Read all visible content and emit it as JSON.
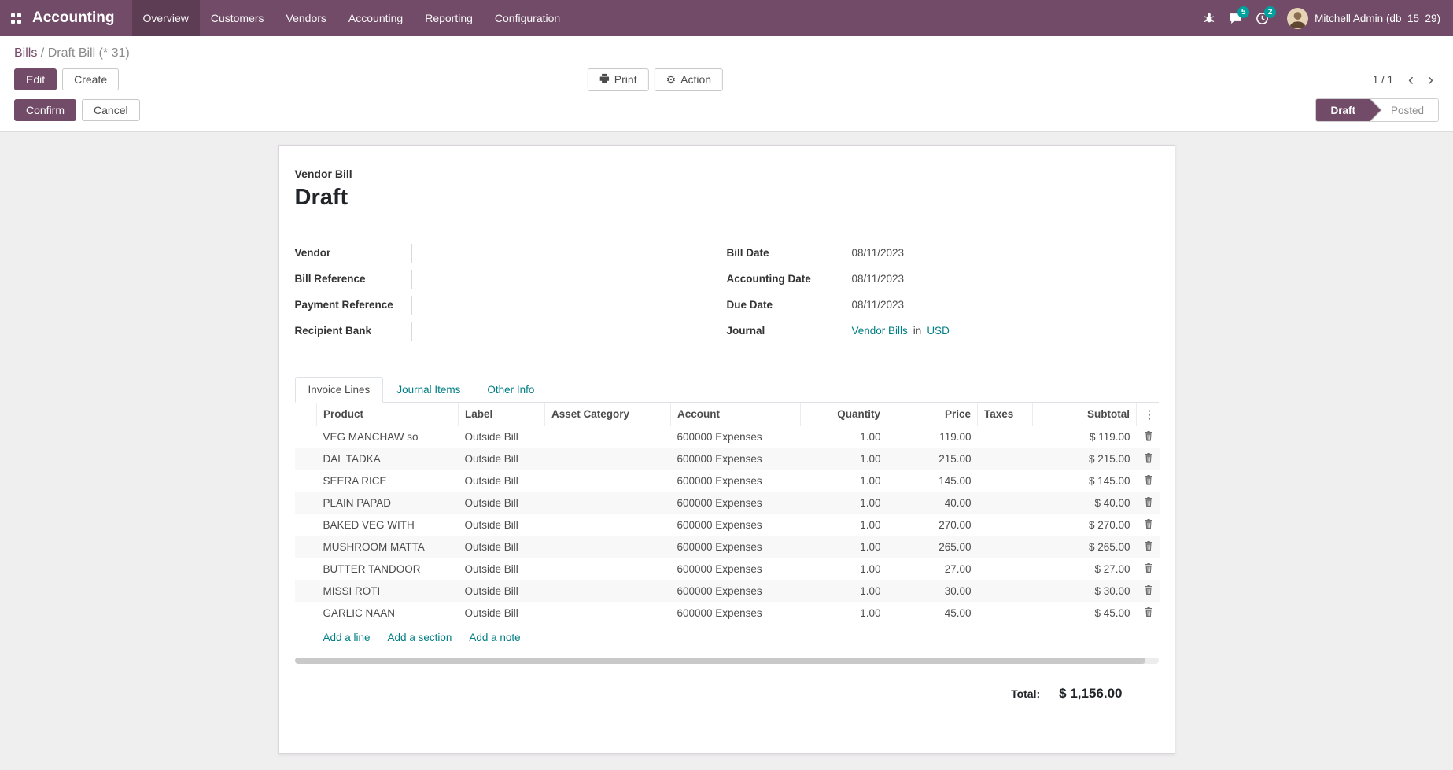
{
  "colors": {
    "brand": "#714B67",
    "link": "#017e84",
    "badge": "#00a09d",
    "page_bg": "#f0eff0"
  },
  "nav": {
    "brand": "Accounting",
    "items": [
      {
        "label": "Overview",
        "active": true
      },
      {
        "label": "Customers",
        "active": false
      },
      {
        "label": "Vendors",
        "active": false
      },
      {
        "label": "Accounting",
        "active": false
      },
      {
        "label": "Reporting",
        "active": false
      },
      {
        "label": "Configuration",
        "active": false
      }
    ],
    "message_count": "5",
    "activity_count": "2",
    "user": "Mitchell Admin (db_15_29)"
  },
  "breadcrumb": {
    "parent": "Bills",
    "separator": "/",
    "current": "Draft Bill (* 31)"
  },
  "toolbar": {
    "edit": "Edit",
    "create": "Create",
    "print": "Print",
    "action": "Action",
    "pager": "1 / 1"
  },
  "statusbar": {
    "confirm": "Confirm",
    "cancel": "Cancel",
    "steps": [
      {
        "label": "Draft",
        "active": true
      },
      {
        "label": "Posted",
        "active": false
      }
    ]
  },
  "document": {
    "type_label": "Vendor Bill",
    "title": "Draft",
    "fields_left": [
      {
        "label": "Vendor",
        "value": ""
      },
      {
        "label": "Bill Reference",
        "value": ""
      },
      {
        "label": "Payment Reference",
        "value": ""
      },
      {
        "label": "Recipient Bank",
        "value": ""
      }
    ],
    "fields_right": [
      {
        "label": "Bill Date",
        "value": "08/11/2023"
      },
      {
        "label": "Accounting Date",
        "value": "08/11/2023"
      },
      {
        "label": "Due Date",
        "value": "08/11/2023"
      }
    ],
    "journal": {
      "label": "Journal",
      "value": "Vendor Bills",
      "separator": "in",
      "currency": "USD"
    }
  },
  "tabs": [
    {
      "label": "Invoice Lines",
      "active": true
    },
    {
      "label": "Journal Items",
      "active": false
    },
    {
      "label": "Other Info",
      "active": false
    }
  ],
  "table": {
    "headers": [
      "Product",
      "Label",
      "Asset Category",
      "Account",
      "Quantity",
      "Price",
      "Taxes",
      "Subtotal"
    ],
    "rows": [
      {
        "product": "VEG MANCHAW so",
        "label": "Outside Bill",
        "asset_category": "",
        "account": "600000 Expenses",
        "quantity": "1.00",
        "price": "119.00",
        "taxes": "",
        "subtotal": "$ 119.00"
      },
      {
        "product": "DAL TADKA",
        "label": "Outside Bill",
        "asset_category": "",
        "account": "600000 Expenses",
        "quantity": "1.00",
        "price": "215.00",
        "taxes": "",
        "subtotal": "$ 215.00"
      },
      {
        "product": "SEERA RICE",
        "label": "Outside Bill",
        "asset_category": "",
        "account": "600000 Expenses",
        "quantity": "1.00",
        "price": "145.00",
        "taxes": "",
        "subtotal": "$ 145.00"
      },
      {
        "product": "PLAIN PAPAD",
        "label": "Outside Bill",
        "asset_category": "",
        "account": "600000 Expenses",
        "quantity": "1.00",
        "price": "40.00",
        "taxes": "",
        "subtotal": "$ 40.00"
      },
      {
        "product": "BAKED VEG WITH",
        "label": "Outside Bill",
        "asset_category": "",
        "account": "600000 Expenses",
        "quantity": "1.00",
        "price": "270.00",
        "taxes": "",
        "subtotal": "$ 270.00"
      },
      {
        "product": "MUSHROOM MATTA",
        "label": "Outside Bill",
        "asset_category": "",
        "account": "600000 Expenses",
        "quantity": "1.00",
        "price": "265.00",
        "taxes": "",
        "subtotal": "$ 265.00"
      },
      {
        "product": "BUTTER TANDOOR",
        "label": "Outside Bill",
        "asset_category": "",
        "account": "600000 Expenses",
        "quantity": "1.00",
        "price": "27.00",
        "taxes": "",
        "subtotal": "$ 27.00"
      },
      {
        "product": "MISSI ROTI",
        "label": "Outside Bill",
        "asset_category": "",
        "account": "600000 Expenses",
        "quantity": "1.00",
        "price": "30.00",
        "taxes": "",
        "subtotal": "$ 30.00"
      },
      {
        "product": "GARLIC NAAN",
        "label": "Outside Bill",
        "asset_category": "",
        "account": "600000 Expenses",
        "quantity": "1.00",
        "price": "45.00",
        "taxes": "",
        "subtotal": "$ 45.00"
      }
    ],
    "footer_links": [
      "Add a line",
      "Add a section",
      "Add a note"
    ],
    "total_label": "Total:",
    "total_value": "$ 1,156.00"
  },
  "icons": {
    "gear": "⚙",
    "kebab": "⋮",
    "prev": "‹",
    "next": "›"
  }
}
